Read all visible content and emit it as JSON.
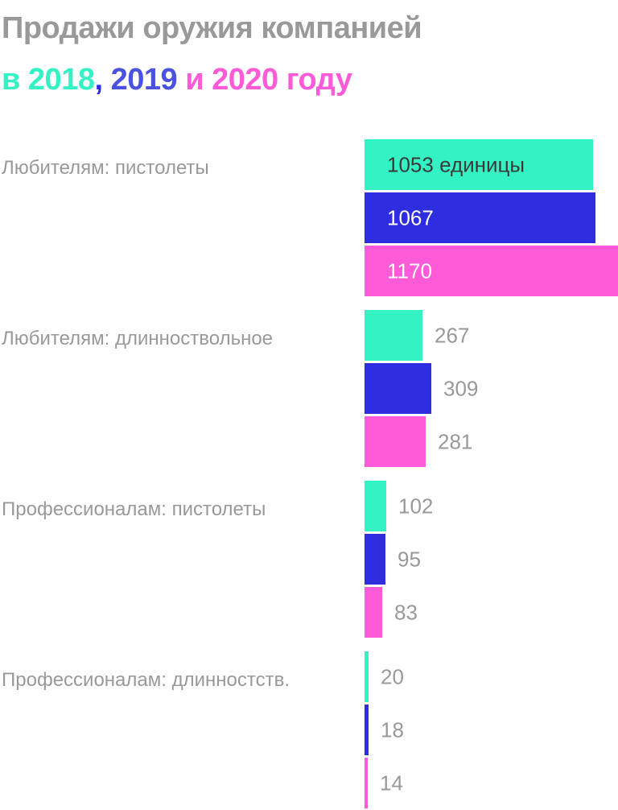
{
  "title": {
    "line1": "Продажи оружия компанией",
    "line2_prefix": "в ",
    "year_2018": "2018",
    "sep_comma": ", ",
    "year_2019": "2019",
    "sep_and": " и ",
    "year_2020": "2020",
    "suffix": " году"
  },
  "colors": {
    "2018": "#33f2c3",
    "2019": "#2e2ee0",
    "2020": "#ff5ad7",
    "title_gray": "#999999",
    "label_gray": "#999999",
    "label_inside_dark": "#3a3a3a",
    "label_inside_light": "#ffffff"
  },
  "chart_data": {
    "type": "bar",
    "orientation": "horizontal",
    "categories": [
      "Любителям: пистолеты",
      "Любителям: длинноствольное",
      "Профессионалам: пистолеты",
      "Профессионалам: длинностств."
    ],
    "series": [
      {
        "name": "2018",
        "values": [
          1053,
          267,
          102,
          20
        ]
      },
      {
        "name": "2019",
        "values": [
          1067,
          309,
          95,
          18
        ]
      },
      {
        "name": "2020",
        "values": [
          1170,
          281,
          83,
          14
        ]
      }
    ],
    "first_value_unit": "единицы",
    "xlim": [
      0,
      1170
    ],
    "grid": false,
    "legend": "title"
  }
}
